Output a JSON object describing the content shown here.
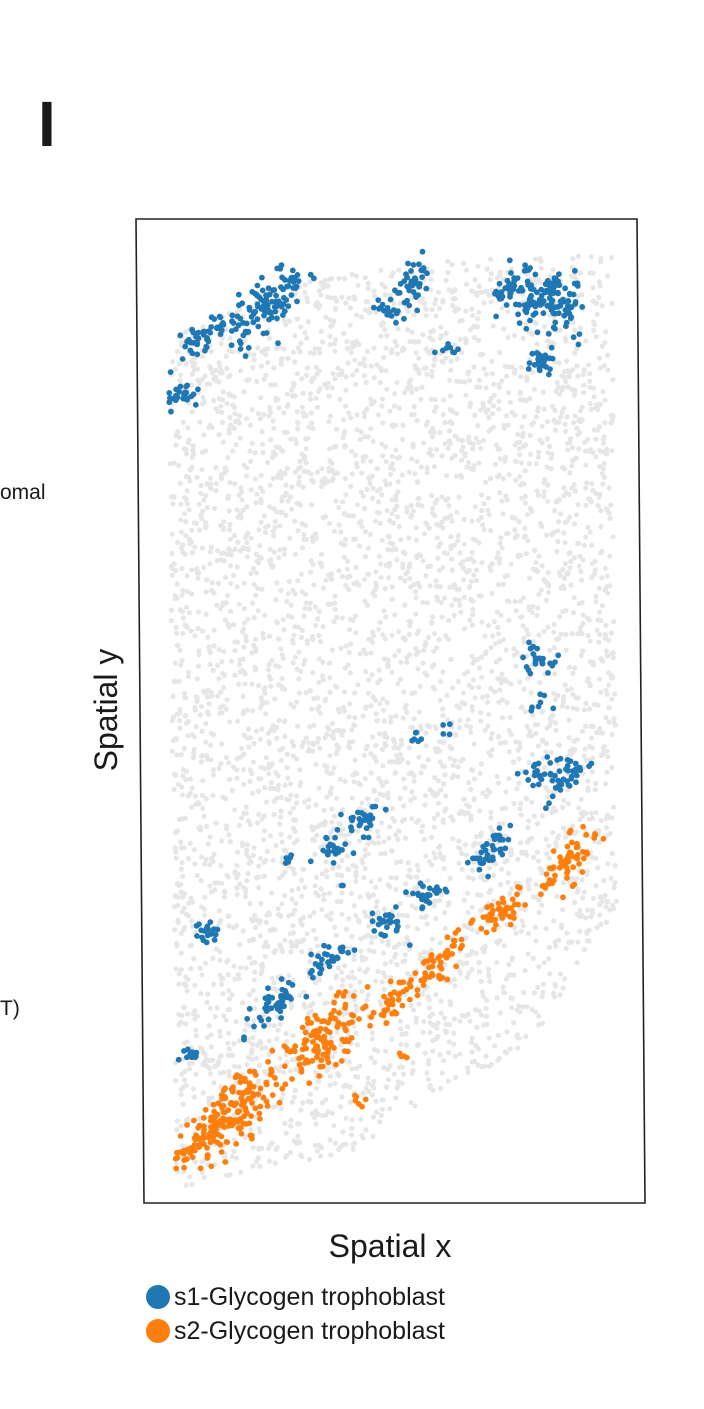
{
  "panel": {
    "letter": "I"
  },
  "side_labels": [
    "omal",
    "T)"
  ],
  "chart_data": {
    "type": "scatter",
    "title": "",
    "xlabel": "Spatial x",
    "ylabel": "Spatial y",
    "xlim": [
      0,
      100
    ],
    "ylim": [
      0,
      100
    ],
    "grid": false,
    "legend_position": "bottom",
    "background_color": "#e6e6e6",
    "background_note": "all other spots drawn in light grey",
    "series": [
      {
        "name": "s1-Glycogen trophoblast",
        "color": "#1f77b4",
        "clusters": [
          {
            "x": 22,
            "y": 93.5,
            "n": 110
          },
          {
            "x": 8,
            "y": 90,
            "n": 45
          },
          {
            "x": 3,
            "y": 84,
            "n": 25
          },
          {
            "x": 55,
            "y": 95.5,
            "n": 50
          },
          {
            "x": 48,
            "y": 93,
            "n": 8
          },
          {
            "x": 78,
            "y": 95.5,
            "n": 40
          },
          {
            "x": 84,
            "y": 94,
            "n": 70
          },
          {
            "x": 89,
            "y": 93,
            "n": 35
          },
          {
            "x": 63,
            "y": 89,
            "n": 8
          },
          {
            "x": 84,
            "y": 88,
            "n": 28
          },
          {
            "x": 92.5,
            "y": 90,
            "n": 3
          },
          {
            "x": 81.5,
            "y": 56,
            "n": 22
          },
          {
            "x": 82.5,
            "y": 51.5,
            "n": 7
          },
          {
            "x": 62,
            "y": 48.5,
            "n": 4
          },
          {
            "x": 55,
            "y": 47.5,
            "n": 6
          },
          {
            "x": 83,
            "y": 44,
            "n": 22
          },
          {
            "x": 89,
            "y": 43.5,
            "n": 35
          },
          {
            "x": 43,
            "y": 39,
            "n": 28
          },
          {
            "x": 35.5,
            "y": 36,
            "n": 22
          },
          {
            "x": 26,
            "y": 35,
            "n": 5
          },
          {
            "x": 71.5,
            "y": 35.5,
            "n": 40
          },
          {
            "x": 38,
            "y": 32,
            "n": 2
          },
          {
            "x": 57,
            "y": 31,
            "n": 25
          },
          {
            "x": 48,
            "y": 28,
            "n": 25
          },
          {
            "x": 7,
            "y": 27,
            "n": 18
          },
          {
            "x": 35,
            "y": 24.5,
            "n": 35
          },
          {
            "x": 23,
            "y": 19.5,
            "n": 45
          },
          {
            "x": 3,
            "y": 14,
            "n": 12
          }
        ]
      },
      {
        "name": "s2-Glycogen trophoblast",
        "color": "#ff7f0e",
        "clusters": [
          {
            "x": 89,
            "y": 34.5,
            "n": 60
          },
          {
            "x": 73,
            "y": 29,
            "n": 45
          },
          {
            "x": 60,
            "y": 24,
            "n": 45
          },
          {
            "x": 50,
            "y": 20,
            "n": 40
          },
          {
            "x": 34,
            "y": 16,
            "n": 120
          },
          {
            "x": 14,
            "y": 8.5,
            "n": 150
          },
          {
            "x": 5,
            "y": 5,
            "n": 50
          },
          {
            "x": 41,
            "y": 9.5,
            "n": 6
          },
          {
            "x": 52,
            "y": 14,
            "n": 4
          }
        ]
      }
    ]
  }
}
